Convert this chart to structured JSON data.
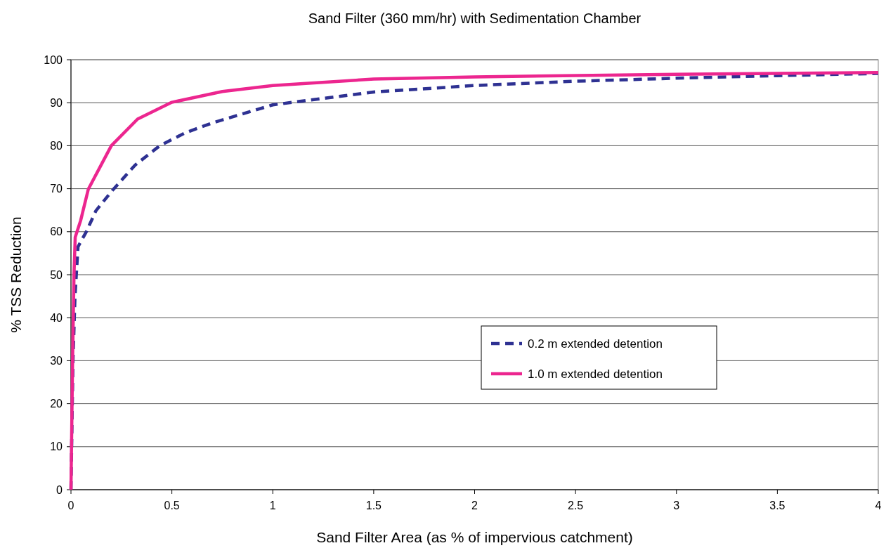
{
  "chart_data": {
    "type": "line",
    "title": "Sand Filter (360 mm/hr) with Sedimentation Chamber",
    "xlabel": "Sand Filter Area (as % of impervious catchment)",
    "ylabel": "% TSS Reduction",
    "xlim": [
      0,
      4
    ],
    "ylim": [
      0,
      100
    ],
    "xticks": [
      0,
      0.5,
      1,
      1.5,
      2,
      2.5,
      3,
      3.5,
      4
    ],
    "yticks": [
      0,
      10,
      20,
      30,
      40,
      50,
      60,
      70,
      80,
      90,
      100
    ],
    "grid": "y",
    "legend": "right",
    "series": [
      {
        "name": "0.2 m extended detention",
        "color": "#2e3192",
        "line_style": "dashed",
        "x": [
          0,
          0.01,
          0.02,
          0.035,
          0.076,
          0.124,
          0.207,
          0.318,
          0.44,
          0.566,
          0.7,
          1,
          1.5,
          2,
          2.5,
          3,
          3.5,
          4
        ],
        "values": [
          0,
          30,
          45,
          56.5,
          60,
          64.9,
          69.7,
          75.5,
          80,
          83,
          85.3,
          89.5,
          92.5,
          94,
          95,
          95.7,
          96.3,
          96.8
        ]
      },
      {
        "name": "1.0 m extended detention",
        "color": "#ec268f",
        "line_style": "solid",
        "x": [
          0,
          0.008,
          0.015,
          0.021,
          0.048,
          0.086,
          0.2,
          0.33,
          0.5,
          0.75,
          1,
          1.5,
          2,
          3,
          4
        ],
        "values": [
          0,
          30,
          50,
          58.7,
          62.6,
          69.9,
          80,
          86.2,
          90.1,
          92.6,
          94,
          95.5,
          96,
          96.6,
          97
        ]
      }
    ]
  }
}
